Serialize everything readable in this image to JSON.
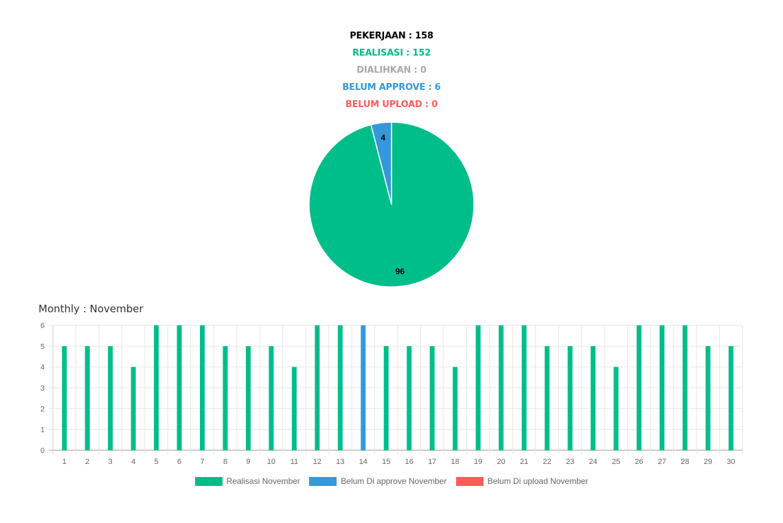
{
  "summary": {
    "pekerjaan": {
      "text": "PEKERJAAN : 158",
      "color": "#000000"
    },
    "realisasi": {
      "text": "REALISASI : 152",
      "color": "#00be8a"
    },
    "dialihkan": {
      "text": "DIALIHKAN : 0",
      "color": "#aaaaaa"
    },
    "belum_approve": {
      "text": "BELUM APPROVE : 6",
      "color": "#3498db"
    },
    "belum_upload": {
      "text": "BELUM UPLOAD : 0",
      "color": "#ff5c5c"
    }
  },
  "monthly_title": "Monthly : November",
  "chart_data": [
    {
      "type": "pie",
      "slices": [
        {
          "label": "96",
          "value": 96,
          "color": "#00be8a"
        },
        {
          "label": "4",
          "value": 4,
          "color": "#3498db"
        }
      ]
    },
    {
      "type": "bar",
      "categories": [
        "1",
        "2",
        "3",
        "4",
        "5",
        "6",
        "7",
        "8",
        "9",
        "10",
        "11",
        "12",
        "13",
        "14",
        "15",
        "16",
        "17",
        "18",
        "19",
        "20",
        "21",
        "22",
        "23",
        "24",
        "25",
        "26",
        "27",
        "28",
        "29",
        "30"
      ],
      "series": [
        {
          "name": "Realisasi November",
          "color": "#00be8a",
          "values": [
            5,
            5,
            5,
            4,
            6,
            6,
            6,
            5,
            5,
            5,
            4,
            6,
            6,
            0,
            5,
            5,
            5,
            4,
            6,
            6,
            6,
            5,
            5,
            5,
            4,
            6,
            6,
            6,
            5,
            5
          ]
        },
        {
          "name": "Belum Di approve November",
          "color": "#3498db",
          "values": [
            0,
            0,
            0,
            0,
            0,
            0,
            0,
            0,
            0,
            0,
            0,
            0,
            0,
            6,
            0,
            0,
            0,
            0,
            0,
            0,
            0,
            0,
            0,
            0,
            0,
            0,
            0,
            0,
            0,
            0
          ]
        },
        {
          "name": "Belum Di upload November",
          "color": "#ff5c5c",
          "values": [
            0,
            0,
            0,
            0,
            0,
            0,
            0,
            0,
            0,
            0,
            0,
            0,
            0,
            0,
            0,
            0,
            0,
            0,
            0,
            0,
            0,
            0,
            0,
            0,
            0,
            0,
            0,
            0,
            0,
            0
          ]
        }
      ],
      "yticks": [
        "0",
        "1",
        "2",
        "3",
        "4",
        "5",
        "6"
      ],
      "ylim": [
        0,
        6
      ],
      "grid": true,
      "legend_position": "bottom"
    }
  ]
}
